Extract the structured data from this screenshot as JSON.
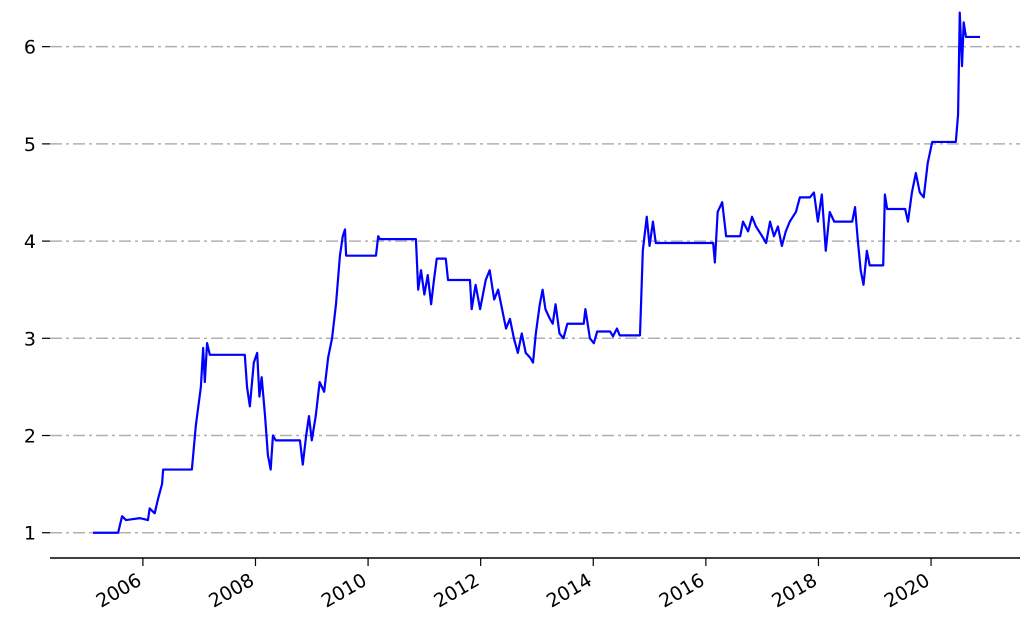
{
  "chart_data": {
    "type": "line",
    "x": [
      2005.11,
      2005.56,
      2005.63,
      2005.7,
      2005.95,
      2006.09,
      2006.12,
      2006.21,
      2006.27,
      2006.34,
      2006.36,
      2006.87,
      2006.94,
      2007.03,
      2007.07,
      2007.1,
      2007.14,
      2007.19,
      2007.81,
      2007.85,
      2007.9,
      2007.97,
      2008.03,
      2008.07,
      2008.11,
      2008.17,
      2008.22,
      2008.27,
      2008.31,
      2008.36,
      2008.79,
      2008.84,
      2008.9,
      2008.95,
      2009.0,
      2009.07,
      2009.14,
      2009.22,
      2009.29,
      2009.36,
      2009.43,
      2009.5,
      2009.55,
      2009.59,
      2009.61,
      2010.14,
      2010.18,
      2010.21,
      2010.85,
      2010.89,
      2010.94,
      2011.0,
      2011.06,
      2011.12,
      2011.17,
      2011.22,
      2011.38,
      2011.42,
      2011.81,
      2011.84,
      2011.91,
      2011.99,
      2012.09,
      2012.16,
      2012.24,
      2012.31,
      2012.38,
      2012.45,
      2012.52,
      2012.59,
      2012.66,
      2012.73,
      2012.8,
      2012.88,
      2012.93,
      2012.98,
      2013.05,
      2013.1,
      2013.15,
      2013.23,
      2013.28,
      2013.33,
      2013.4,
      2013.47,
      2013.54,
      2013.83,
      2013.86,
      2013.94,
      2014.01,
      2014.07,
      2014.3,
      2014.35,
      2014.42,
      2014.47,
      2014.83,
      2014.88,
      2014.95,
      2015.0,
      2015.06,
      2015.11,
      2016.13,
      2016.16,
      2016.21,
      2016.29,
      2016.36,
      2016.61,
      2016.66,
      2016.75,
      2016.82,
      2016.89,
      2017.0,
      2017.07,
      2017.14,
      2017.21,
      2017.28,
      2017.35,
      2017.42,
      2017.49,
      2017.6,
      2017.67,
      2017.85,
      2017.92,
      2017.99,
      2018.06,
      2018.13,
      2018.2,
      2018.28,
      2018.6,
      2018.65,
      2018.7,
      2018.75,
      2018.8,
      2018.86,
      2018.91,
      2019.15,
      2019.18,
      2019.22,
      2019.54,
      2019.59,
      2019.66,
      2019.73,
      2019.8,
      2019.87,
      2019.94,
      2020.02,
      2020.44,
      2020.48,
      2020.51,
      2020.55,
      2020.58,
      2020.62,
      2020.87
    ],
    "series": [
      {
        "color": "#0000ff",
        "values": [
          1.0,
          1.0,
          1.17,
          1.13,
          1.15,
          1.13,
          1.25,
          1.2,
          1.35,
          1.5,
          1.65,
          1.65,
          2.1,
          2.5,
          2.9,
          2.55,
          2.95,
          2.83,
          2.83,
          2.5,
          2.3,
          2.75,
          2.85,
          2.4,
          2.6,
          2.2,
          1.8,
          1.65,
          2.0,
          1.95,
          1.95,
          1.7,
          2.0,
          2.2,
          1.95,
          2.2,
          2.55,
          2.45,
          2.8,
          3.0,
          3.35,
          3.85,
          4.05,
          4.12,
          3.85,
          3.85,
          4.05,
          4.02,
          4.02,
          3.5,
          3.7,
          3.45,
          3.65,
          3.35,
          3.6,
          3.82,
          3.82,
          3.6,
          3.6,
          3.3,
          3.55,
          3.3,
          3.6,
          3.7,
          3.4,
          3.5,
          3.3,
          3.1,
          3.2,
          3.0,
          2.85,
          3.05,
          2.85,
          2.8,
          2.75,
          3.05,
          3.35,
          3.5,
          3.3,
          3.2,
          3.15,
          3.35,
          3.05,
          3.0,
          3.15,
          3.15,
          3.3,
          3.0,
          2.95,
          3.07,
          3.07,
          3.02,
          3.1,
          3.03,
          3.03,
          3.9,
          4.25,
          3.95,
          4.2,
          3.98,
          3.98,
          3.78,
          4.3,
          4.4,
          4.05,
          4.05,
          4.2,
          4.1,
          4.25,
          4.15,
          4.05,
          3.98,
          4.2,
          4.05,
          4.15,
          3.95,
          4.1,
          4.2,
          4.3,
          4.45,
          4.45,
          4.5,
          4.2,
          4.48,
          3.9,
          4.3,
          4.2,
          4.2,
          4.35,
          4.0,
          3.7,
          3.55,
          3.9,
          3.75,
          3.75,
          4.48,
          4.33,
          4.33,
          4.2,
          4.5,
          4.7,
          4.5,
          4.45,
          4.8,
          5.02,
          5.02,
          5.3,
          6.35,
          5.8,
          6.25,
          6.1,
          6.1
        ]
      }
    ],
    "xlim": [
      2004.35,
      2021.58
    ],
    "xticks": [
      2006,
      2008,
      2010,
      2012,
      2014,
      2016,
      2018,
      2020
    ],
    "ylim": [
      0.74,
      6.48
    ],
    "yticks": [
      1,
      2,
      3,
      4,
      5,
      6
    ],
    "grid": true
  }
}
